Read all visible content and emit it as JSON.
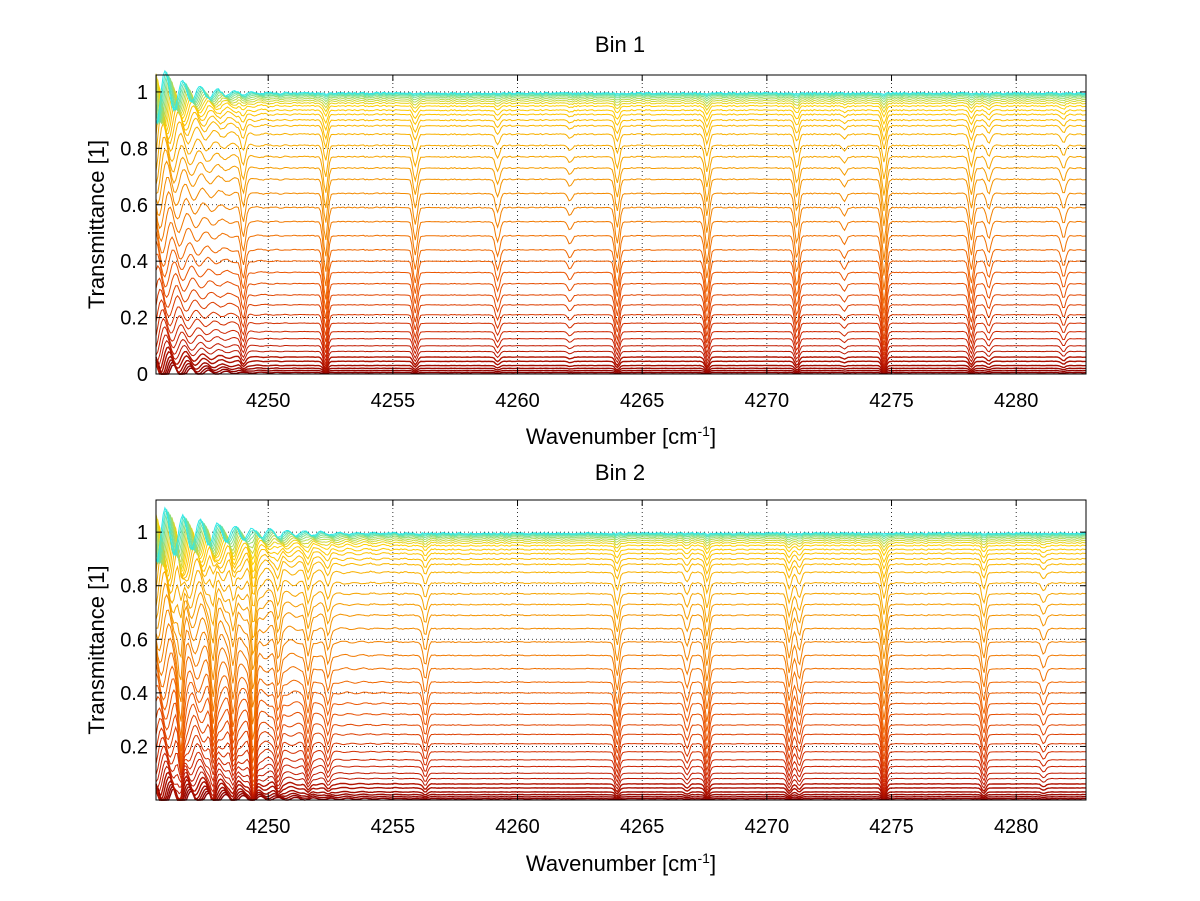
{
  "chart_data": [
    {
      "type": "line",
      "title": "Bin 1",
      "xlabel": "Wavenumber [cm",
      "xlabel_sup": "-1",
      "xlabel_end": "]",
      "ylabel": "Transmittance [1]",
      "xlim": [
        4245.5,
        4282.8
      ],
      "ylim": [
        0,
        1.06
      ],
      "xticks": [
        4250,
        4255,
        4260,
        4265,
        4270,
        4275,
        4280
      ],
      "yticks": [
        0,
        0.2,
        0.4,
        0.6,
        0.8,
        1
      ],
      "ytick_labels": [
        "0",
        "0.2",
        "0.4",
        "0.6",
        "0.8",
        "1"
      ],
      "grid": true,
      "series_count": 40,
      "series_levels": [
        0.005,
        0.012,
        0.02,
        0.03,
        0.045,
        0.06,
        0.08,
        0.1,
        0.125,
        0.15,
        0.18,
        0.21,
        0.245,
        0.28,
        0.32,
        0.36,
        0.4,
        0.44,
        0.49,
        0.54,
        0.59,
        0.64,
        0.69,
        0.73,
        0.77,
        0.81,
        0.85,
        0.88,
        0.9,
        0.92,
        0.935,
        0.95,
        0.96,
        0.968,
        0.975,
        0.981,
        0.986,
        0.99,
        0.993,
        0.996
      ],
      "absorption_lines": [
        {
          "x": 4249.0,
          "depth": 0.18
        },
        {
          "x": 4252.3,
          "depth": 0.3
        },
        {
          "x": 4255.9,
          "depth": 0.2
        },
        {
          "x": 4259.2,
          "depth": 0.12
        },
        {
          "x": 4262.1,
          "depth": 0.05
        },
        {
          "x": 4264.0,
          "depth": 0.22
        },
        {
          "x": 4267.6,
          "depth": 0.25
        },
        {
          "x": 4271.2,
          "depth": 0.22
        },
        {
          "x": 4273.1,
          "depth": 0.05
        },
        {
          "x": 4274.7,
          "depth": 0.32
        },
        {
          "x": 4278.2,
          "depth": 0.2
        },
        {
          "x": 4278.9,
          "depth": 0.1
        },
        {
          "x": 4281.9,
          "depth": 0.1
        }
      ],
      "colormap": [
        "#8b0000",
        "#c81e00",
        "#ee5a00",
        "#f5a000",
        "#ffd000",
        "#2ee8e8"
      ]
    },
    {
      "type": "line",
      "title": "Bin 2",
      "xlabel": "Wavenumber [cm",
      "xlabel_sup": "-1",
      "xlabel_end": "]",
      "ylabel": "Transmittance [1]",
      "xlim": [
        4245.5,
        4282.8
      ],
      "ylim": [
        0,
        1.12
      ],
      "xticks": [
        4250,
        4255,
        4260,
        4265,
        4270,
        4275,
        4280
      ],
      "yticks": [
        0.2,
        0.4,
        0.6,
        0.8,
        1
      ],
      "ytick_labels": [
        "0.2",
        "0.4",
        "0.6",
        "0.8",
        "1"
      ],
      "grid": true,
      "series_count": 40,
      "series_levels": [
        0.005,
        0.012,
        0.02,
        0.03,
        0.045,
        0.06,
        0.08,
        0.1,
        0.125,
        0.15,
        0.18,
        0.21,
        0.245,
        0.28,
        0.32,
        0.36,
        0.4,
        0.44,
        0.49,
        0.54,
        0.59,
        0.64,
        0.69,
        0.73,
        0.77,
        0.81,
        0.85,
        0.88,
        0.9,
        0.92,
        0.935,
        0.95,
        0.96,
        0.968,
        0.975,
        0.981,
        0.986,
        0.99,
        0.993,
        0.996
      ],
      "absorption_lines": [
        {
          "x": 4246.5,
          "depth": 0.35
        },
        {
          "x": 4247.8,
          "depth": 0.3
        },
        {
          "x": 4248.6,
          "depth": 0.25
        },
        {
          "x": 4249.4,
          "depth": 0.45
        },
        {
          "x": 4250.4,
          "depth": 0.2
        },
        {
          "x": 4251.6,
          "depth": 0.2
        },
        {
          "x": 4252.4,
          "depth": 0.15
        },
        {
          "x": 4256.3,
          "depth": 0.15
        },
        {
          "x": 4264.0,
          "depth": 0.22
        },
        {
          "x": 4266.8,
          "depth": 0.12
        },
        {
          "x": 4267.6,
          "depth": 0.25
        },
        {
          "x": 4270.9,
          "depth": 0.2
        },
        {
          "x": 4271.3,
          "depth": 0.15
        },
        {
          "x": 4274.7,
          "depth": 0.32
        },
        {
          "x": 4278.7,
          "depth": 0.2
        },
        {
          "x": 4281.1,
          "depth": 0.08
        }
      ],
      "colormap": [
        "#8b0000",
        "#c81e00",
        "#ee5a00",
        "#f5a000",
        "#ffd000",
        "#2ee8e8"
      ]
    }
  ]
}
